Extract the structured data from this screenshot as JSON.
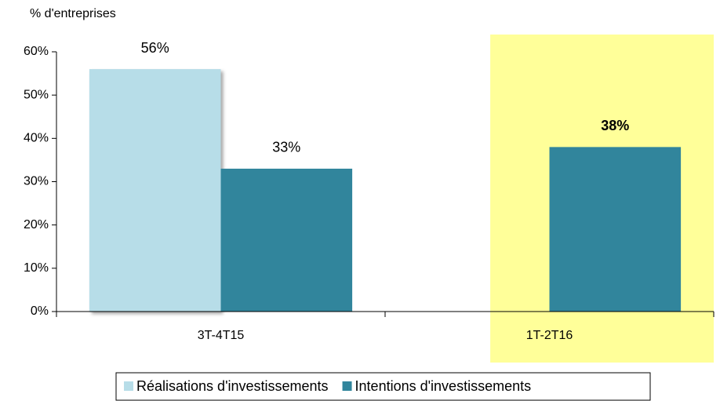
{
  "chart_data": {
    "type": "bar",
    "y_axis_label": "% d'entreprises",
    "categories": [
      "3T-4T15",
      "1T-2T16"
    ],
    "series": [
      {
        "name": "Réalisations d'investissements",
        "color": "#b7dde8",
        "values": [
          56,
          null
        ]
      },
      {
        "name": "Intentions d'investissements",
        "color": "#31859c",
        "values": [
          33,
          38
        ],
        "value_labels": [
          "33%",
          "38%"
        ]
      }
    ],
    "series_value_labels_0": null,
    "ylim": [
      0,
      60
    ],
    "yticks": [
      {
        "value": 0,
        "label": "0%"
      },
      {
        "value": 10,
        "label": "10%"
      },
      {
        "value": 20,
        "label": "20%"
      },
      {
        "value": 30,
        "label": "30%"
      },
      {
        "value": 40,
        "label": "40%"
      },
      {
        "value": 50,
        "label": "50%"
      },
      {
        "value": 60,
        "label": "60%"
      }
    ],
    "highlight": {
      "category": 1,
      "color": "#ffff99"
    },
    "legend": "bottom"
  }
}
